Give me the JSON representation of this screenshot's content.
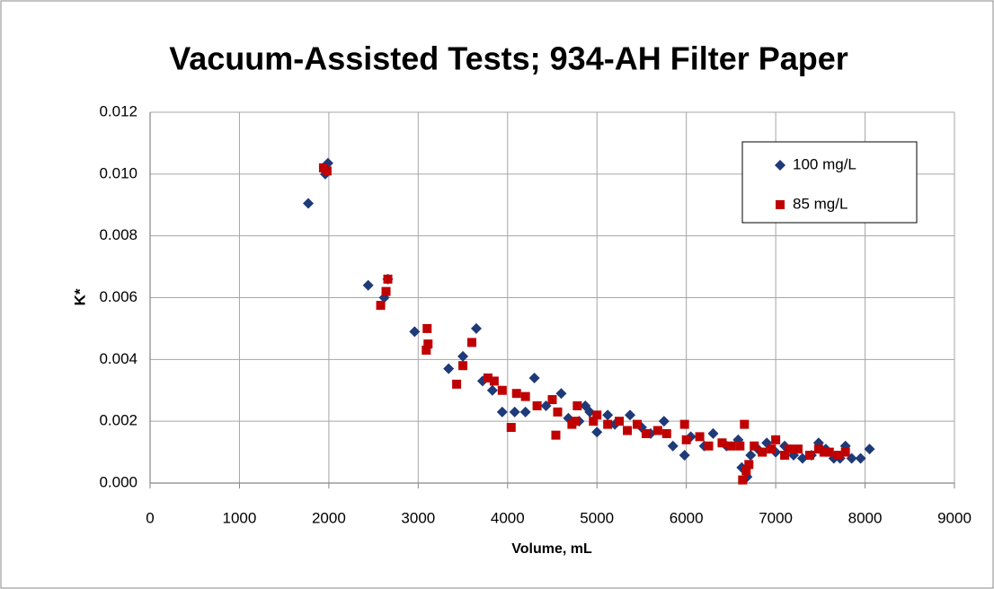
{
  "chart_data": {
    "type": "scatter",
    "title": "Vacuum-Assisted Tests; 934-AH Filter Paper",
    "x_label": "Volume, mL",
    "y_label": "K*",
    "xlim": [
      0,
      9000
    ],
    "xticks": [
      0,
      1000,
      2000,
      3000,
      4000,
      5000,
      6000,
      7000,
      8000,
      9000
    ],
    "ylim": [
      0,
      0.012
    ],
    "yticks": [
      {
        "value": 0,
        "label": "0.000"
      },
      {
        "value": 0.002,
        "label": "0.002"
      },
      {
        "value": 0.004,
        "label": "0.004"
      },
      {
        "value": 0.006,
        "label": "0.006"
      },
      {
        "value": 0.008,
        "label": "0.008"
      },
      {
        "value": 0.01,
        "label": "0.010"
      },
      {
        "value": 0.012,
        "label": "0.012"
      }
    ],
    "grid": true,
    "legend": "upper right",
    "series": [
      {
        "name": "100 mg/L",
        "color": "#1f3a78",
        "marker": "diamond",
        "x": [
          1770,
          1960,
          1990,
          2440,
          2620,
          2660,
          2960,
          3100,
          3340,
          3500,
          3650,
          3720,
          3830,
          3940,
          4080,
          4200,
          4300,
          4430,
          4600,
          4680,
          4800,
          4870,
          4920,
          5000,
          5120,
          5200,
          5370,
          5500,
          5600,
          5750,
          5850,
          5980,
          6050,
          6200,
          6300,
          6450,
          6580,
          6620,
          6680,
          6720,
          6800,
          6900,
          7000,
          7100,
          7200,
          7300,
          7400,
          7480,
          7560,
          7650,
          7720,
          7780,
          7850,
          7950,
          8050
        ],
        "values": [
          0.00905,
          0.01,
          0.01035,
          0.0064,
          0.006,
          0.0066,
          0.0049,
          0.0044,
          0.0037,
          0.0041,
          0.005,
          0.0033,
          0.003,
          0.0023,
          0.0023,
          0.0023,
          0.0034,
          0.0025,
          0.0029,
          0.0021,
          0.002,
          0.0025,
          0.0023,
          0.00165,
          0.0022,
          0.0019,
          0.0022,
          0.0018,
          0.0016,
          0.002,
          0.0012,
          0.0009,
          0.0015,
          0.0012,
          0.0016,
          0.0012,
          0.0014,
          0.0005,
          0.0002,
          0.0009,
          0.0011,
          0.0013,
          0.001,
          0.0012,
          0.0009,
          0.0008,
          0.0009,
          0.0013,
          0.0011,
          0.0008,
          0.0008,
          0.0012,
          0.0008,
          0.0008,
          0.0011
        ]
      },
      {
        "name": "85 mg/L",
        "color": "#c00000",
        "marker": "square",
        "x": [
          1940,
          1980,
          2580,
          2640,
          2660,
          3090,
          3100,
          3110,
          3430,
          3500,
          3600,
          3780,
          3850,
          3940,
          4040,
          4100,
          4200,
          4330,
          4500,
          4540,
          4560,
          4720,
          4760,
          4780,
          4960,
          5000,
          5120,
          5250,
          5340,
          5450,
          5550,
          5680,
          5780,
          5980,
          6000,
          6150,
          6250,
          6400,
          6500,
          6600,
          6630,
          6650,
          6670,
          6700,
          6760,
          6850,
          6950,
          7000,
          7100,
          7150,
          7250,
          7380,
          7480,
          7540,
          7600,
          7700,
          7780
        ],
        "values": [
          0.0102,
          0.0101,
          0.00575,
          0.0062,
          0.0066,
          0.0043,
          0.005,
          0.0045,
          0.0032,
          0.0038,
          0.00455,
          0.0034,
          0.0033,
          0.003,
          0.0018,
          0.0029,
          0.0028,
          0.0025,
          0.0027,
          0.00155,
          0.0023,
          0.0019,
          0.002,
          0.0025,
          0.002,
          0.0022,
          0.0019,
          0.002,
          0.0017,
          0.0019,
          0.0016,
          0.0017,
          0.0016,
          0.0019,
          0.0014,
          0.0015,
          0.0012,
          0.0013,
          0.0012,
          0.0012,
          0.0001,
          0.0019,
          0.0004,
          0.0006,
          0.0012,
          0.001,
          0.0011,
          0.0014,
          0.0009,
          0.0011,
          0.0011,
          0.0009,
          0.0011,
          0.001,
          0.001,
          0.0009,
          0.001
        ]
      }
    ]
  }
}
